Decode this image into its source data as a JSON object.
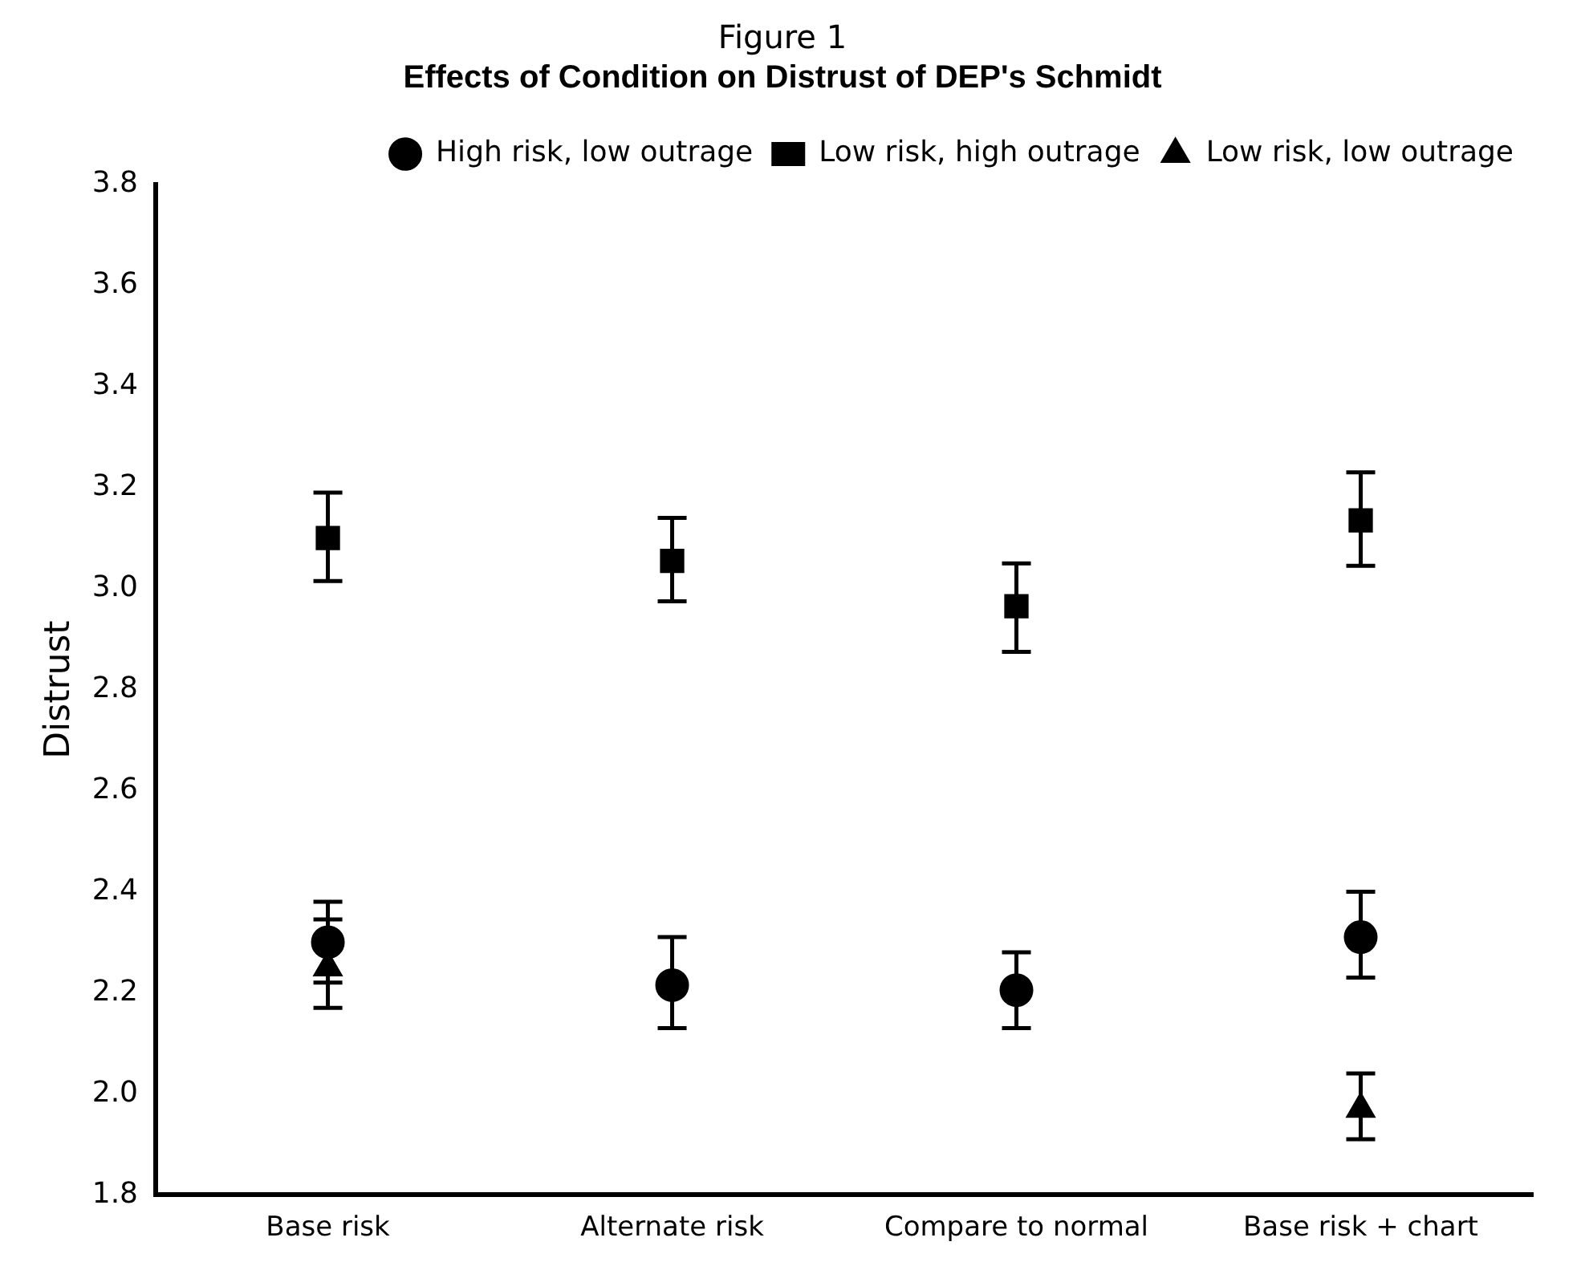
{
  "chart_data": {
    "type": "scatter",
    "title": "Figure 1",
    "subtitle": "Effects of Condition on Distrust of DEP's Schmidt",
    "ylabel": "Distrust",
    "categories": [
      "Base risk",
      "Alternate risk",
      "Compare to normal",
      "Base risk + chart"
    ],
    "ylim": [
      1.8,
      3.8
    ],
    "yticks": [
      1.8,
      {
        "value": 2.0,
        "label": "2.0"
      },
      2.2,
      2.4,
      2.6,
      2.8,
      {
        "value": 3.0,
        "label": "3.0"
      },
      3.2,
      3.4,
      3.6,
      3.8
    ],
    "legend": "top right",
    "grid": false,
    "series": [
      {
        "name": "High risk, low outrage",
        "color": "#000000",
        "marker": "circle",
        "values": [
          2.3,
          2.215,
          2.205,
          2.31
        ],
        "errors": [
          [
            2.22,
            2.38
          ],
          [
            2.13,
            2.31
          ],
          [
            2.13,
            2.28
          ],
          [
            2.23,
            2.4
          ]
        ]
      },
      {
        "name": "Low risk, high outrage",
        "color": "#000000",
        "marker": "square",
        "values": [
          3.1,
          3.055,
          2.965,
          3.135
        ],
        "errors": [
          [
            3.015,
            3.19
          ],
          [
            2.975,
            3.14
          ],
          [
            2.875,
            3.05
          ],
          [
            3.045,
            3.23
          ]
        ]
      },
      {
        "name": "Low risk, low outrage",
        "color": "#000000",
        "marker": "triangle",
        "values": [
          2.25,
          null,
          null,
          1.97
        ],
        "errors": [
          [
            2.17,
            2.345
          ],
          null,
          null,
          [
            1.91,
            2.04
          ]
        ]
      }
    ]
  }
}
